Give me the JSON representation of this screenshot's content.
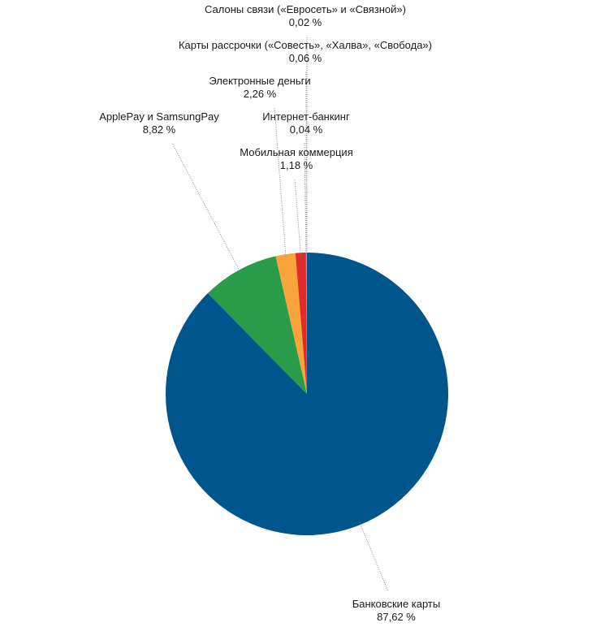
{
  "chart_data": {
    "type": "pie",
    "title": "",
    "unit": "%",
    "slices": [
      {
        "name": "Банковские карты",
        "value": 87.62,
        "value_label": "87,62 %",
        "color": "#00558c"
      },
      {
        "name": "ApplePay и SamsungPay",
        "value": 8.82,
        "value_label": "8,82 %",
        "color": "#299c49"
      },
      {
        "name": "Электронные деньги",
        "value": 2.26,
        "value_label": "2,26 %",
        "color": "#f9a43a"
      },
      {
        "name": "Мобильная коммерция",
        "value": 1.18,
        "value_label": "1,18 %",
        "color": "#e02b2b"
      },
      {
        "name": "Интернет-банкинг",
        "value": 0.04,
        "value_label": "0,04 %",
        "color": "#7a3a96"
      },
      {
        "name": "Карты рассрочки («Совесть», «Халва», «Свобода»)",
        "value": 0.06,
        "value_label": "0,06 %",
        "color": "#8c8c8c"
      },
      {
        "name": "Салоны связи («Евросеть» и «Связной»)",
        "value": 0.02,
        "value_label": "0,02 %",
        "color": "#1f9ad6"
      }
    ]
  }
}
